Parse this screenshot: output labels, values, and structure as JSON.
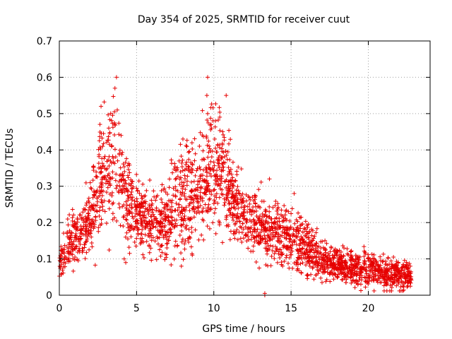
{
  "chart_data": {
    "type": "scatter",
    "title": "Day 354 of 2025, SRMTID for receiver cuut",
    "xlabel": "GPS time / hours",
    "ylabel": "SRMTID / TECUs",
    "xlim": [
      0,
      24
    ],
    "ylim": [
      0,
      0.7
    ],
    "xticks": [
      0,
      5,
      10,
      15,
      20
    ],
    "yticks": [
      0,
      0.1,
      0.2,
      0.3,
      0.4,
      0.5,
      0.6,
      0.7
    ],
    "xtick_labels": [
      "0",
      "5",
      "10",
      "15",
      "20"
    ],
    "ytick_labels": [
      "0",
      "0.1",
      "0.2",
      "0.3",
      "0.4",
      "0.5",
      "0.6",
      "0.7"
    ],
    "grid": true,
    "marker": "+",
    "color": "#e60000",
    "series": [
      {
        "name": "SRMTID",
        "trend_x": [
          0,
          0.3,
          0.8,
          1.5,
          2.0,
          2.5,
          3.0,
          3.5,
          3.8,
          4.2,
          4.6,
          5.0,
          5.5,
          6.0,
          6.5,
          7.0,
          7.5,
          8.0,
          8.5,
          9.0,
          9.5,
          10.0,
          10.5,
          11.0,
          11.5,
          12.0,
          12.5,
          13.0,
          13.5,
          14.0,
          14.5,
          15.0,
          15.5,
          16.0,
          16.5,
          17.0,
          17.5,
          18.0,
          18.5,
          19.0,
          19.5,
          20.0,
          20.5,
          21.0,
          21.5,
          22.0,
          22.5,
          22.8
        ],
        "trend_y": [
          0.08,
          0.11,
          0.15,
          0.17,
          0.22,
          0.28,
          0.32,
          0.38,
          0.36,
          0.28,
          0.25,
          0.22,
          0.21,
          0.2,
          0.19,
          0.2,
          0.23,
          0.27,
          0.26,
          0.29,
          0.32,
          0.34,
          0.33,
          0.28,
          0.24,
          0.22,
          0.2,
          0.18,
          0.17,
          0.17,
          0.16,
          0.15,
          0.14,
          0.13,
          0.11,
          0.1,
          0.09,
          0.085,
          0.08,
          0.075,
          0.07,
          0.07,
          0.065,
          0.06,
          0.06,
          0.055,
          0.055,
          0.05
        ],
        "spread_y": [
          0.03,
          0.04,
          0.05,
          0.05,
          0.06,
          0.09,
          0.11,
          0.12,
          0.11,
          0.09,
          0.07,
          0.06,
          0.06,
          0.06,
          0.06,
          0.07,
          0.09,
          0.09,
          0.09,
          0.1,
          0.12,
          0.11,
          0.1,
          0.09,
          0.07,
          0.06,
          0.06,
          0.06,
          0.05,
          0.05,
          0.05,
          0.05,
          0.05,
          0.045,
          0.04,
          0.035,
          0.03,
          0.03,
          0.03,
          0.03,
          0.03,
          0.03,
          0.03,
          0.03,
          0.03,
          0.025,
          0.025,
          0.02
        ],
        "extremes": [
          {
            "x": 2.7,
            "y": 0.52
          },
          {
            "x": 3.7,
            "y": 0.6
          },
          {
            "x": 3.6,
            "y": 0.57
          },
          {
            "x": 3.75,
            "y": 0.51
          },
          {
            "x": 9.6,
            "y": 0.6
          },
          {
            "x": 9.55,
            "y": 0.55
          },
          {
            "x": 9.6,
            "y": 0.5
          },
          {
            "x": 10.8,
            "y": 0.55
          },
          {
            "x": 10.1,
            "y": 0.48
          },
          {
            "x": 8.0,
            "y": 0.43
          },
          {
            "x": 4.0,
            "y": 0.44
          },
          {
            "x": 3.2,
            "y": 0.46
          },
          {
            "x": 13.3,
            "y": 0.0
          },
          {
            "x": 13.3,
            "y": 0.005
          },
          {
            "x": 13.6,
            "y": 0.32
          },
          {
            "x": 15.2,
            "y": 0.28
          },
          {
            "x": 4.2,
            "y": 0.1
          },
          {
            "x": 4.3,
            "y": 0.09
          },
          {
            "x": 7.9,
            "y": 0.08
          }
        ]
      }
    ]
  }
}
